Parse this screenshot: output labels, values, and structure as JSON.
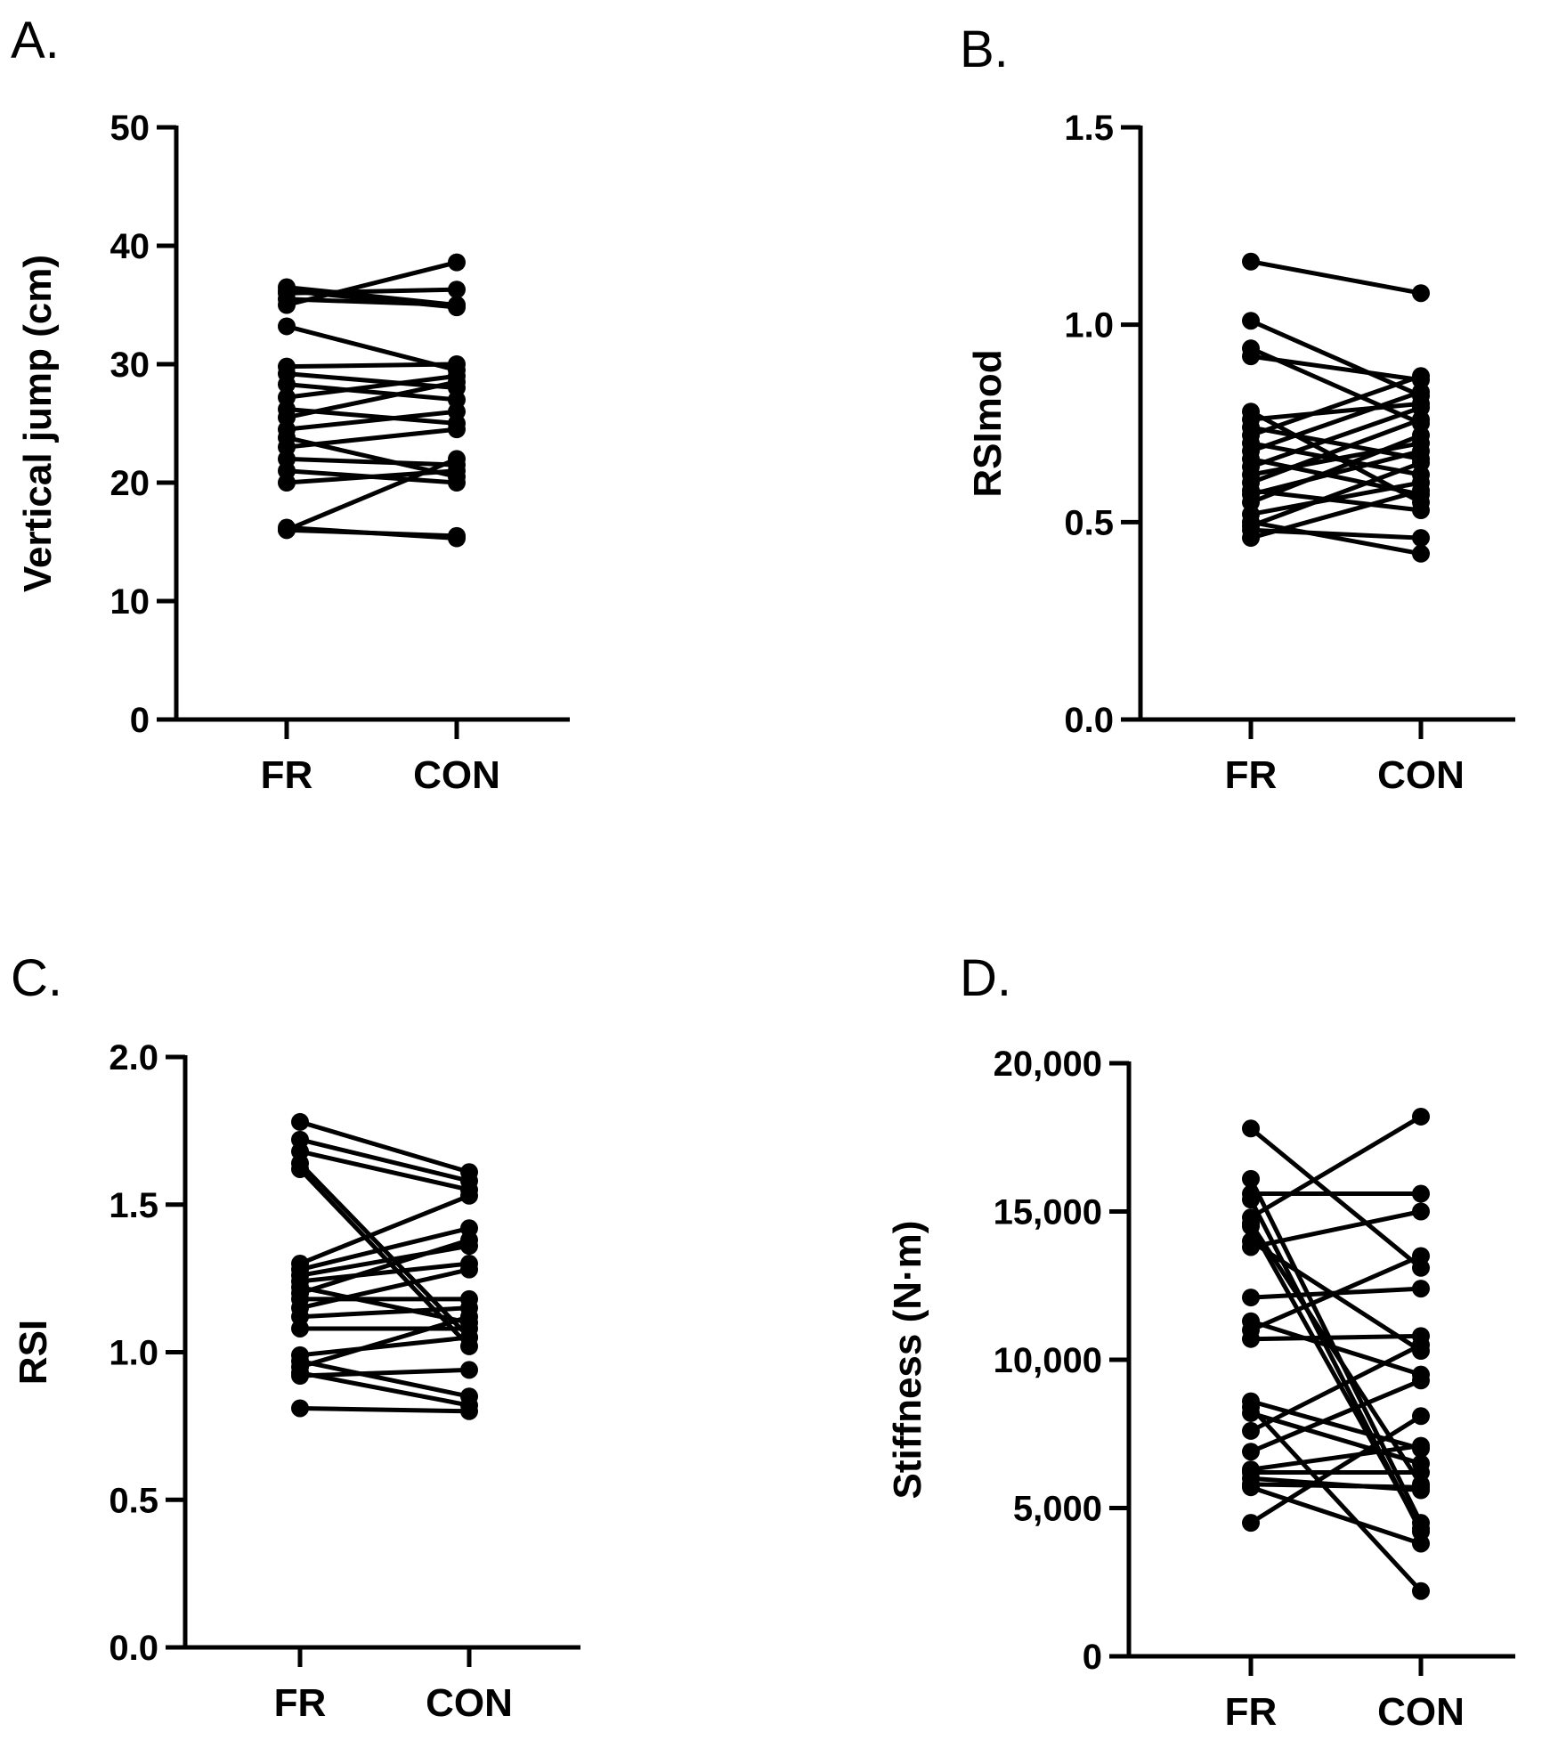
{
  "figure": {
    "panel_letters": [
      "A.",
      "B.",
      "C.",
      "D."
    ]
  },
  "chart_data": [
    {
      "type": "line",
      "panel": "A.",
      "categories": [
        "FR",
        "CON"
      ],
      "ylabel": "Vertical jump  (cm)",
      "ylim": [
        0,
        50
      ],
      "yticks": [
        0,
        10,
        20,
        30,
        40,
        50
      ],
      "ytick_labels": [
        "0",
        "10",
        "20",
        "30",
        "40",
        "50"
      ],
      "pairs": [
        [
          36.5,
          35.0
        ],
        [
          36.0,
          36.3
        ],
        [
          35.5,
          35.0
        ],
        [
          35.0,
          38.6
        ],
        [
          36.2,
          34.8
        ],
        [
          33.2,
          29.5
        ],
        [
          29.8,
          30.0
        ],
        [
          29.2,
          28.0
        ],
        [
          28.3,
          27.0
        ],
        [
          27.2,
          29.0
        ],
        [
          26.2,
          25.0
        ],
        [
          25.5,
          28.5
        ],
        [
          24.5,
          26.0
        ],
        [
          23.8,
          20.5
        ],
        [
          23.0,
          24.5
        ],
        [
          22.0,
          21.5
        ],
        [
          21.0,
          20.0
        ],
        [
          20.0,
          21.0
        ],
        [
          16.0,
          22.0
        ],
        [
          16.0,
          15.5
        ],
        [
          16.2,
          15.3
        ]
      ]
    },
    {
      "type": "line",
      "panel": "B.",
      "categories": [
        "FR",
        "CON"
      ],
      "ylabel": "RSImod",
      "ylim": [
        0,
        1.5
      ],
      "yticks": [
        0,
        0.5,
        1.0,
        1.5
      ],
      "ytick_labels": [
        "0.0",
        "0.5",
        "1.0",
        "1.5"
      ],
      "pairs": [
        [
          1.16,
          1.08
        ],
        [
          1.01,
          0.82
        ],
        [
          0.94,
          0.75
        ],
        [
          0.92,
          0.86
        ],
        [
          0.78,
          0.55
        ],
        [
          0.76,
          0.8
        ],
        [
          0.74,
          0.66
        ],
        [
          0.72,
          0.87
        ],
        [
          0.7,
          0.62
        ],
        [
          0.68,
          0.83
        ],
        [
          0.66,
          0.57
        ],
        [
          0.64,
          0.79
        ],
        [
          0.62,
          0.7
        ],
        [
          0.6,
          0.76
        ],
        [
          0.58,
          0.53
        ],
        [
          0.57,
          0.68
        ],
        [
          0.55,
          0.72
        ],
        [
          0.52,
          0.6
        ],
        [
          0.5,
          0.42
        ],
        [
          0.49,
          0.65
        ],
        [
          0.48,
          0.46
        ],
        [
          0.46,
          0.58
        ]
      ]
    },
    {
      "type": "line",
      "panel": "C.",
      "categories": [
        "FR",
        "CON"
      ],
      "ylabel": "RSI",
      "ylim": [
        0,
        2.0
      ],
      "yticks": [
        0,
        0.5,
        1.0,
        1.5,
        2.0
      ],
      "ytick_labels": [
        "0.0",
        "0.5",
        "1.0",
        "1.5",
        "2.0"
      ],
      "pairs": [
        [
          1.78,
          1.61
        ],
        [
          1.72,
          1.58
        ],
        [
          1.68,
          1.55
        ],
        [
          1.64,
          1.05
        ],
        [
          1.62,
          1.02
        ],
        [
          1.3,
          1.53
        ],
        [
          1.28,
          1.42
        ],
        [
          1.26,
          1.36
        ],
        [
          1.24,
          1.3
        ],
        [
          1.22,
          1.1
        ],
        [
          1.2,
          1.38
        ],
        [
          1.18,
          1.18
        ],
        [
          1.15,
          1.28
        ],
        [
          1.12,
          1.15
        ],
        [
          1.08,
          1.08
        ],
        [
          0.99,
          1.05
        ],
        [
          0.97,
          0.85
        ],
        [
          0.95,
          1.12
        ],
        [
          0.93,
          0.82
        ],
        [
          0.92,
          0.94
        ],
        [
          0.81,
          0.8
        ]
      ]
    },
    {
      "type": "line",
      "panel": "D.",
      "categories": [
        "FR",
        "CON"
      ],
      "ylabel": "Stiffness (N·m)",
      "ylim": [
        0,
        20000
      ],
      "yticks": [
        0,
        5000,
        10000,
        15000,
        20000
      ],
      "ytick_labels": [
        "0",
        "5,000",
        "10,000",
        "15,000",
        "20,000"
      ],
      "pairs": [
        [
          17800,
          13100
        ],
        [
          16100,
          4500
        ],
        [
          15600,
          15600
        ],
        [
          15400,
          4200
        ],
        [
          14800,
          18200
        ],
        [
          14600,
          5800
        ],
        [
          14500,
          4300
        ],
        [
          14000,
          10300
        ],
        [
          13800,
          15000
        ],
        [
          12100,
          12400
        ],
        [
          11300,
          9500
        ],
        [
          11000,
          13500
        ],
        [
          10700,
          10800
        ],
        [
          8600,
          7000
        ],
        [
          8400,
          2200
        ],
        [
          8200,
          6500
        ],
        [
          7600,
          10500
        ],
        [
          6900,
          9300
        ],
        [
          6300,
          7100
        ],
        [
          6200,
          6200
        ],
        [
          6000,
          5600
        ],
        [
          5800,
          5700
        ],
        [
          5700,
          3800
        ],
        [
          4500,
          8100
        ]
      ]
    }
  ]
}
